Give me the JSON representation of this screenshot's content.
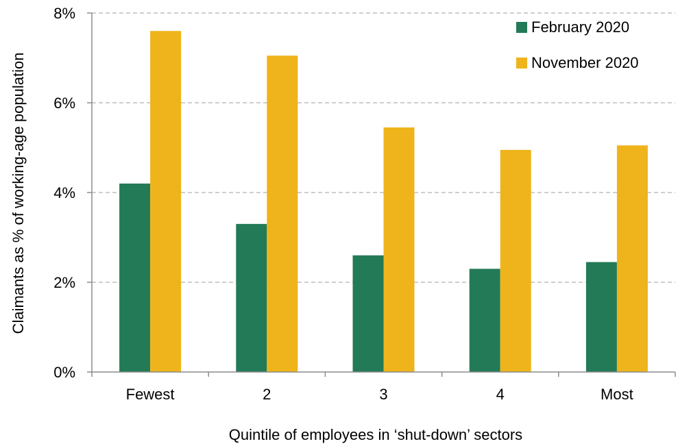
{
  "chart_data": {
    "type": "bar",
    "categories": [
      "Fewest",
      "2",
      "3",
      "4",
      "Most"
    ],
    "series": [
      {
        "name": "February 2020",
        "color": "#237a57",
        "values": [
          4.2,
          3.3,
          2.6,
          2.3,
          2.45
        ]
      },
      {
        "name": "November 2020",
        "color": "#efb41b",
        "values": [
          7.6,
          7.05,
          5.45,
          4.95,
          5.05
        ]
      }
    ],
    "xlabel": "Quintile of employees in ‘shut-down’ sectors",
    "ylabel": "Claimants as % of working-age population",
    "ylim": [
      0,
      8
    ],
    "yticks": [
      0,
      2,
      4,
      6,
      8
    ],
    "ytick_labels": [
      "0%",
      "2%",
      "4%",
      "6%",
      "8%"
    ],
    "grid": true,
    "legend_position": "top-right"
  }
}
